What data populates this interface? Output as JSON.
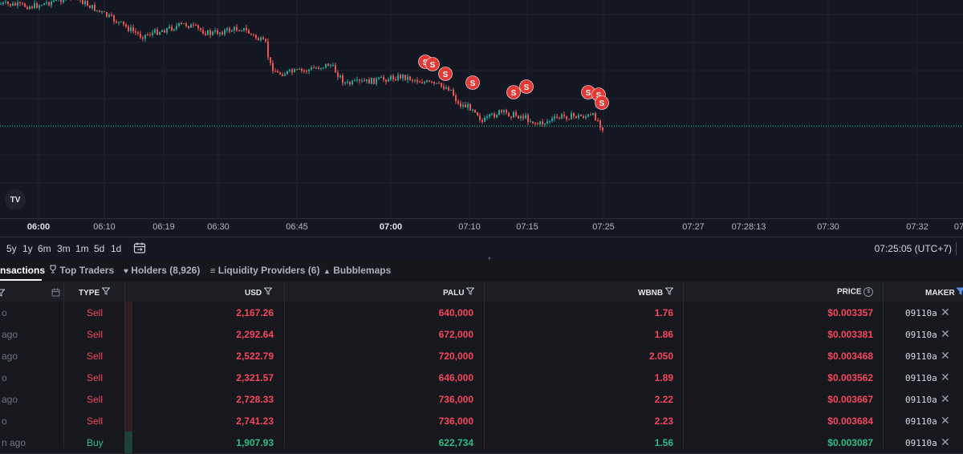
{
  "chart": {
    "time_ticks": [
      {
        "label": "06:00",
        "bold": true
      },
      {
        "label": "06:10",
        "bold": false
      },
      {
        "label": "06:19",
        "bold": false
      },
      {
        "label": "06:30",
        "bold": false
      },
      {
        "label": "06:45",
        "bold": false
      },
      {
        "label": "07:00",
        "bold": true
      },
      {
        "label": "07:10",
        "bold": false
      },
      {
        "label": "07:15",
        "bold": false
      },
      {
        "label": "07:25",
        "bold": false
      },
      {
        "label": "07:27",
        "bold": false
      },
      {
        "label": "07:28:13",
        "bold": false
      },
      {
        "label": "07:30",
        "bold": false
      },
      {
        "label": "07:32",
        "bold": false
      },
      {
        "label": "07",
        "bold": false
      }
    ],
    "sell_marker_label": "S",
    "logo_text": "TV",
    "colors": {
      "up": "#26a69a",
      "down": "#ef5350",
      "marker": "#e53935",
      "price_line": "#2ebd85"
    }
  },
  "toolbar": {
    "ranges": [
      "5y",
      "1y",
      "6m",
      "3m",
      "1m",
      "5d",
      "1d"
    ],
    "clock": "07:25:05 (UTC+7)"
  },
  "tabs": [
    {
      "label": "nsactions",
      "icon": "",
      "active": true
    },
    {
      "label": "Top Traders",
      "icon": "trophy-icon",
      "active": false
    },
    {
      "label": "Holders (8,926)",
      "icon": "heart-icon",
      "active": false
    },
    {
      "label": "Liquidity Providers (6)",
      "icon": "list-icon",
      "active": false
    },
    {
      "label": "Bubblemaps",
      "icon": "bubbles-icon",
      "active": false
    }
  ],
  "table": {
    "headers": {
      "type": "TYPE",
      "usd": "USD",
      "palu": "PALU",
      "wbnb": "WBNB",
      "price": "PRICE",
      "maker": "MAKER"
    },
    "rows": [
      {
        "age": "o",
        "type": "Sell",
        "side": "sell",
        "usd": "2,167.26",
        "palu": "640,000",
        "wbnb": "1.76",
        "price": "$0.003357",
        "maker": "09110a"
      },
      {
        "age": "ago",
        "type": "Sell",
        "side": "sell",
        "usd": "2,292.64",
        "palu": "672,000",
        "wbnb": "1.86",
        "price": "$0.003381",
        "maker": "09110a"
      },
      {
        "age": "ago",
        "type": "Sell",
        "side": "sell",
        "usd": "2,522.79",
        "palu": "720,000",
        "wbnb": "2.050",
        "price": "$0.003468",
        "maker": "09110a"
      },
      {
        "age": "o",
        "type": "Sell",
        "side": "sell",
        "usd": "2,321.57",
        "palu": "646,000",
        "wbnb": "1.89",
        "price": "$0.003562",
        "maker": "09110a"
      },
      {
        "age": "ago",
        "type": "Sell",
        "side": "sell",
        "usd": "2,728.33",
        "palu": "736,000",
        "wbnb": "2.22",
        "price": "$0.003667",
        "maker": "09110a"
      },
      {
        "age": "o",
        "type": "Sell",
        "side": "sell",
        "usd": "2,741.23",
        "palu": "736,000",
        "wbnb": "2.23",
        "price": "$0.003684",
        "maker": "09110a"
      },
      {
        "age": "n ago",
        "type": "Buy",
        "side": "buy",
        "usd": "1,907.93",
        "palu": "622,734",
        "wbnb": "1.56",
        "price": "$0.003087",
        "maker": "09110a"
      }
    ]
  }
}
